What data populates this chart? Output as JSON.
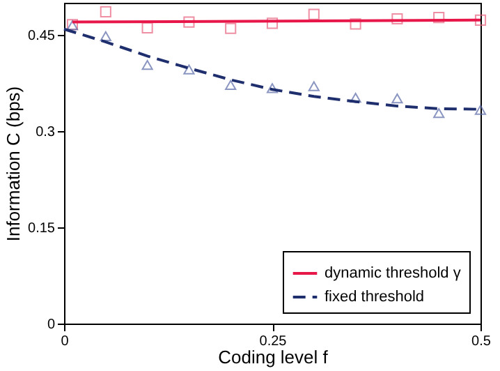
{
  "chart_data": {
    "type": "line",
    "xlabel": "Coding level f",
    "ylabel": "Information C (bps)",
    "xlim": [
      0,
      0.5
    ],
    "ylim": [
      0,
      0.5
    ],
    "xticks": [
      0,
      0.25,
      0.5
    ],
    "yticks": [
      0,
      0.15,
      0.3,
      0.45
    ],
    "grid": false,
    "legend": "bottom right",
    "series": [
      {
        "type": "scatter",
        "marker": "square",
        "color": "#e8607e",
        "x": [
          0.01,
          0.05,
          0.1,
          0.15,
          0.2,
          0.25,
          0.3,
          0.35,
          0.4,
          0.45,
          0.5
        ],
        "values": [
          0.466,
          0.486,
          0.461,
          0.47,
          0.46,
          0.468,
          0.482,
          0.467,
          0.475,
          0.477,
          0.473
        ]
      },
      {
        "type": "scatter",
        "marker": "triangle",
        "color": "#5a6aa8",
        "x": [
          0.01,
          0.05,
          0.1,
          0.15,
          0.2,
          0.25,
          0.3,
          0.35,
          0.4,
          0.45,
          0.5
        ],
        "values": [
          0.465,
          0.448,
          0.403,
          0.396,
          0.372,
          0.367,
          0.37,
          0.352,
          0.351,
          0.328,
          0.333
        ]
      },
      {
        "name": "dynamic threshold γ",
        "color": "#e8174a",
        "line_style": "solid",
        "x": [
          0.01,
          0.5
        ],
        "values": [
          0.47,
          0.473
        ]
      },
      {
        "name": "fixed threshold",
        "color": "#1f2f6e",
        "line_style": "dashed",
        "x": [
          0,
          0.05,
          0.1,
          0.15,
          0.2,
          0.25,
          0.3,
          0.35,
          0.4,
          0.45,
          0.5
        ],
        "values": [
          0.459,
          0.439,
          0.417,
          0.398,
          0.38,
          0.365,
          0.354,
          0.346,
          0.339,
          0.335,
          0.334
        ]
      }
    ]
  }
}
